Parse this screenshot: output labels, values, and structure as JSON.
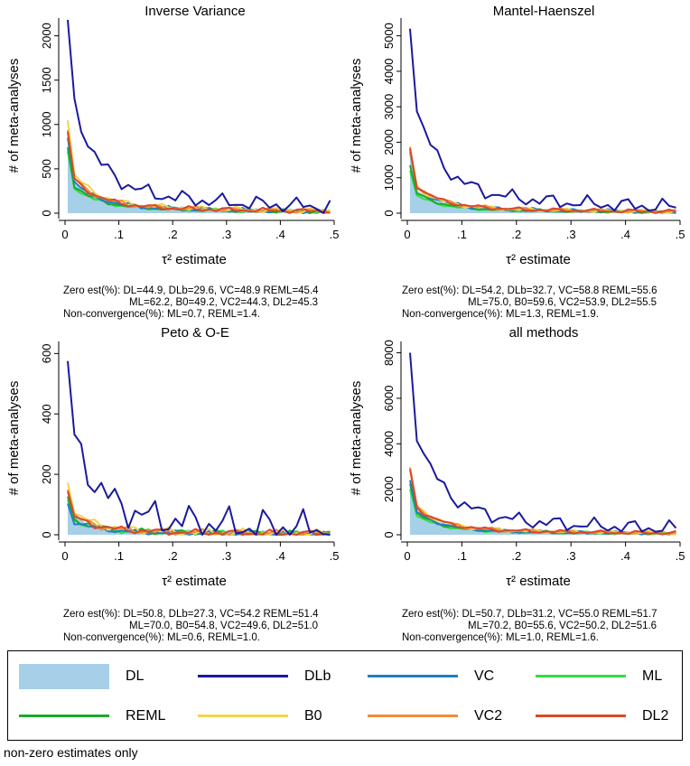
{
  "chart_data": [
    {
      "type": "line",
      "title": "Inverse Variance",
      "xlabel": "τ² estimate",
      "ylabel": "# of meta-analyses",
      "xlim": [
        0,
        0.5
      ],
      "ylim": [
        0,
        2200
      ],
      "xticks": [
        0,
        0.1,
        0.2,
        0.3,
        0.4,
        0.5
      ],
      "xtick_labels": [
        "0",
        ".1",
        ".2",
        ".3",
        ".4",
        ".5"
      ],
      "yticks": [
        0,
        500,
        1000,
        1500,
        2000
      ],
      "yscale": 2180,
      "notes": [
        "Zero est(%): DL=44.9, DLb=29.6, VC=48.9 REML=45.4",
        "ML=62.2, B0=49.2, VC2=44.3, DL2=45.3",
        "Non-convergence(%): ML=0.7, REML=1.4."
      ],
      "series": [
        {
          "name": "DL",
          "peak": 0.4
        },
        {
          "name": "DLb",
          "peak": 1.0
        },
        {
          "name": "VC",
          "peak": 0.39
        },
        {
          "name": "ML",
          "peak": 0.32
        },
        {
          "name": "REML",
          "peak": 0.34
        },
        {
          "name": "B0",
          "peak": 0.48
        },
        {
          "name": "VC2",
          "peak": 0.43
        },
        {
          "name": "DL2",
          "peak": 0.42
        }
      ]
    },
    {
      "type": "line",
      "title": "Mantel-Haenszel",
      "xlabel": "τ² estimate",
      "ylabel": "# of meta-analyses",
      "xlim": [
        0,
        0.5
      ],
      "ylim": [
        0,
        5500
      ],
      "xticks": [
        0,
        0.1,
        0.2,
        0.3,
        0.4,
        0.5
      ],
      "xtick_labels": [
        "0",
        ".1",
        ".2",
        ".3",
        ".4",
        ".5"
      ],
      "yticks": [
        0,
        1000,
        2000,
        3000,
        4000,
        5000
      ],
      "yscale": 5200,
      "notes": [
        "Zero est(%): DL=54.2, DLb=32.7, VC=58.8 REML=55.6",
        "ML=75.0, B0=59.6, VC2=53.9, DL2=55.5",
        "Non-convergence(%): ML=1.3, REML=1.9."
      ],
      "series": [
        {
          "name": "DL",
          "peak": 0.3
        },
        {
          "name": "DLb",
          "peak": 1.0
        },
        {
          "name": "VC",
          "peak": 0.33
        },
        {
          "name": "ML",
          "peak": 0.23
        },
        {
          "name": "REML",
          "peak": 0.26
        },
        {
          "name": "B0",
          "peak": 0.34
        },
        {
          "name": "VC2",
          "peak": 0.36
        },
        {
          "name": "DL2",
          "peak": 0.35
        }
      ]
    },
    {
      "type": "line",
      "title": "Peto & O-E",
      "xlabel": "τ² estimate",
      "ylabel": "# of meta-analyses",
      "xlim": [
        0,
        0.5
      ],
      "ylim": [
        0,
        640
      ],
      "xticks": [
        0,
        0.1,
        0.2,
        0.3,
        0.4,
        0.5
      ],
      "xtick_labels": [
        "0",
        ".1",
        ".2",
        ".3",
        ".4",
        ".5"
      ],
      "yticks": [
        0,
        200,
        400,
        600
      ],
      "yscale": 575,
      "notes": [
        "Zero est(%): DL=50.8, DLb=27.3, VC=54.2 REML=51.4",
        "ML=70.0, B0=54.8, VC2=49.6, DL2=51.0",
        "Non-convergence(%): ML=0.6, REML=1.0."
      ],
      "series": [
        {
          "name": "DL",
          "peak": 0.24
        },
        {
          "name": "DLb",
          "peak": 1.0
        },
        {
          "name": "VC",
          "peak": 0.18
        },
        {
          "name": "ML",
          "peak": 0.2
        },
        {
          "name": "REML",
          "peak": 0.22
        },
        {
          "name": "B0",
          "peak": 0.3
        },
        {
          "name": "VC2",
          "peak": 0.26
        },
        {
          "name": "DL2",
          "peak": 0.25
        }
      ]
    },
    {
      "type": "line",
      "title": "all methods",
      "xlabel": "τ² estimate",
      "ylabel": "# of meta-analyses",
      "xlim": [
        0,
        0.5
      ],
      "ylim": [
        0,
        8500
      ],
      "xticks": [
        0,
        0.1,
        0.2,
        0.3,
        0.4,
        0.5
      ],
      "xtick_labels": [
        "0",
        ".1",
        ".2",
        ".3",
        ".4",
        ".5"
      ],
      "yticks": [
        0,
        2000,
        4000,
        6000,
        8000
      ],
      "yscale": 8000,
      "notes": [
        "Zero est(%): DL=50.7, DLb=31.2, VC=55.0 REML=51.7",
        "ML=70.2, B0=55.6, VC2=50.2, DL2=51.6",
        "Non-convergence(%): ML=1.0, REML=1.6."
      ],
      "series": [
        {
          "name": "DL",
          "peak": 0.3
        },
        {
          "name": "DLb",
          "peak": 1.0
        },
        {
          "name": "VC",
          "peak": 0.3
        },
        {
          "name": "ML",
          "peak": 0.25
        },
        {
          "name": "REML",
          "peak": 0.28
        },
        {
          "name": "B0",
          "peak": 0.37
        },
        {
          "name": "VC2",
          "peak": 0.37
        },
        {
          "name": "DL2",
          "peak": 0.36
        }
      ]
    }
  ],
  "legend": [
    {
      "name": "DL",
      "color": "#a6cfe8",
      "style": "area"
    },
    {
      "name": "DLb",
      "color": "#1a1a9e",
      "style": "line"
    },
    {
      "name": "VC",
      "color": "#1f7fc4",
      "style": "line"
    },
    {
      "name": "ML",
      "color": "#33dd44",
      "style": "line"
    },
    {
      "name": "REML",
      "color": "#1aaa2a",
      "style": "line"
    },
    {
      "name": "B0",
      "color": "#f2d44a",
      "style": "line"
    },
    {
      "name": "VC2",
      "color": "#f08c3a",
      "style": "line"
    },
    {
      "name": "DL2",
      "color": "#d9482b",
      "style": "line"
    }
  ],
  "footnote": "non-zero estimates only"
}
